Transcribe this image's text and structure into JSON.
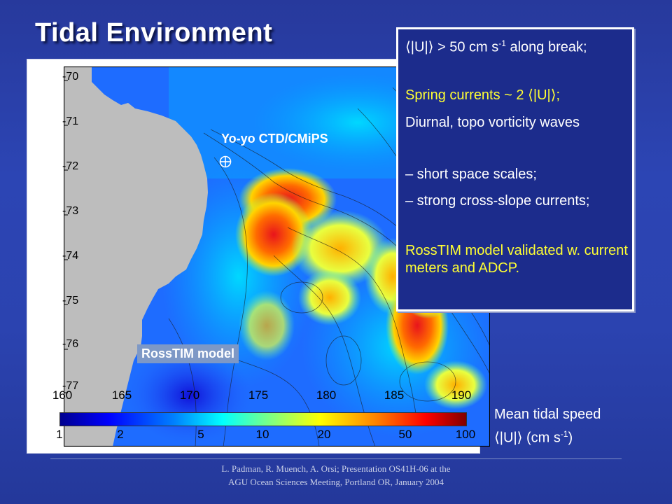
{
  "slide": {
    "title": "Tidal Environment"
  },
  "map": {
    "y_ticks": [
      "-70",
      "-71",
      "-72",
      "-73",
      "-74",
      "-75",
      "-76",
      "-77"
    ],
    "x_ticks": [
      "160",
      "165",
      "170",
      "175",
      "180",
      "185",
      "190"
    ],
    "colorbar_ticks": [
      "1",
      "2",
      "5",
      "10",
      "20",
      "50",
      "100"
    ],
    "site_label": "Yo-yo CTD/CMiPS",
    "model_label": "RossTIM model",
    "colors": {
      "land": "#bdbdbd",
      "ocean_low": "#0000ff",
      "ocean_mid": "#00ffff",
      "ocean_high": "#ff0000"
    }
  },
  "info_box": {
    "line1_a": "⟨|U|⟩ > 50 cm s",
    "line1_sup": "-1",
    "line1_b": " along break;",
    "line2": "Spring currents ~ 2 ⟨|U|⟩;",
    "line3": "Diurnal, topo vorticity waves",
    "line4": "– short space scales;",
    "line5": "– strong cross-slope currents;",
    "line6": "RossTIM model validated w. current meters and ADCP."
  },
  "caption": {
    "line1": "Mean tidal speed",
    "line2_a": "⟨|U|⟩ (cm s",
    "line2_sup": "-1",
    "line2_b": ")"
  },
  "footer": {
    "line1": "L. Padman, R. Muench, A. Orsi; Presentation OS41H-06 at the",
    "line2": "AGU Ocean Sciences Meeting, Portland OR, January 2004"
  }
}
